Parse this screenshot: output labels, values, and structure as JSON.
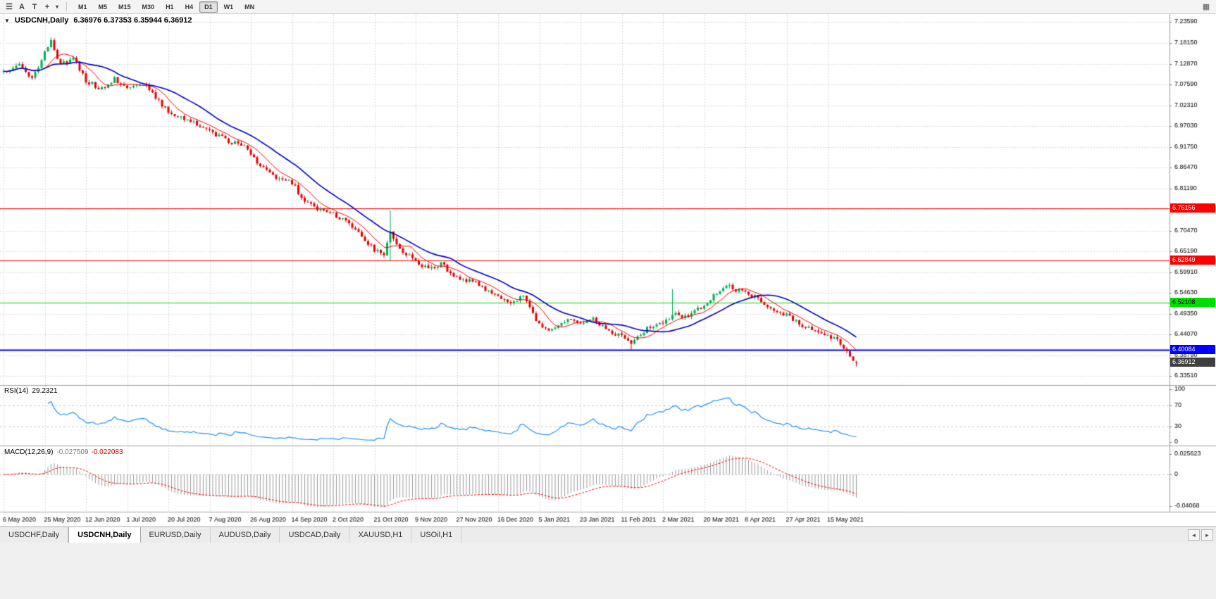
{
  "toolbar": {
    "left_icons": [
      {
        "name": "toolbars-menu-icon",
        "glyph": "☰"
      },
      {
        "name": "cursor-tool-icon",
        "glyph": "A"
      },
      {
        "name": "text-tool-icon",
        "glyph": "T"
      },
      {
        "name": "crosshair-tool-icon",
        "glyph": "+"
      },
      {
        "name": "tool-dropdown-icon",
        "glyph": "▾"
      }
    ],
    "timeframes": [
      {
        "label": "M1",
        "active": false
      },
      {
        "label": "M5",
        "active": false
      },
      {
        "label": "M15",
        "active": false
      },
      {
        "label": "M30",
        "active": false
      },
      {
        "label": "H1",
        "active": false
      },
      {
        "label": "H4",
        "active": false
      },
      {
        "label": "D1",
        "active": true
      },
      {
        "label": "W1",
        "active": false
      },
      {
        "label": "MN",
        "active": false
      }
    ],
    "right_icon_glyph": "▦"
  },
  "chart_header": {
    "dropdown_glyph": "▼",
    "title": "USDCNH,Daily",
    "ohlc": "6.36976 6.37353 6.35944 6.36912"
  },
  "indicators": {
    "rsi_label": "RSI(14)",
    "rsi_value": "29.2321",
    "macd_label": "MACD(12,26,9)",
    "macd_value_main": "-0.027509",
    "macd_value_signal": "-0.022083"
  },
  "tabbar": {
    "tabs": [
      {
        "label": "USDCHF,Daily",
        "active": false
      },
      {
        "label": "USDCNH,Daily",
        "active": true
      },
      {
        "label": "EURUSD,Daily",
        "active": false
      },
      {
        "label": "AUDUSD,Daily",
        "active": false
      },
      {
        "label": "USDCAD,Daily",
        "active": false
      },
      {
        "label": "XAUUSD,H1",
        "active": false
      },
      {
        "label": "USOil,H1",
        "active": false
      }
    ],
    "scroll_left_glyph": "◄",
    "scroll_right_glyph": "►"
  },
  "chart_data": {
    "type": "candlestick",
    "symbol": "USDCNH",
    "timeframe": "Daily",
    "up_color": "#00b050",
    "down_color": "#e60000",
    "price_axis_labels": [
      "7.23590",
      "7.18150",
      "7.12870",
      "7.07590",
      "7.02310",
      "6.97030",
      "6.91750",
      "6.86470",
      "6.81190",
      "6.75910",
      "6.70470",
      "6.65190",
      "6.59910",
      "6.54630",
      "6.49350",
      "6.44070",
      "6.38790",
      "6.33510"
    ],
    "date_labels": [
      "6 May 2020",
      "25 May 2020",
      "12 Jun 2020",
      "1 Jul 2020",
      "20 Jul 2020",
      "7 Aug 2020",
      "26 Aug 2020",
      "14 Sep 2020",
      "2 Oct 2020",
      "21 Oct 2020",
      "9 Nov 2020",
      "27 Nov 2020",
      "16 Dec 2020",
      "5 Jan 2021",
      "23 Jan 2021",
      "11 Feb 2021",
      "2 Mar 2021",
      "20 Mar 2021",
      "8 Apr 2021",
      "27 Apr 2021",
      "15 May 2021"
    ],
    "num_candles": 270,
    "candles_per_date_tick": 13,
    "last_candle": {
      "o": 6.36976,
      "h": 6.37353,
      "l": 6.35944,
      "c": 6.36912
    },
    "price_anchors": [
      [
        0,
        7.105
      ],
      [
        5,
        7.125
      ],
      [
        9,
        7.09
      ],
      [
        13,
        7.155
      ],
      [
        15,
        7.185
      ],
      [
        18,
        7.125
      ],
      [
        22,
        7.145
      ],
      [
        26,
        7.085
      ],
      [
        31,
        7.065
      ],
      [
        35,
        7.09
      ],
      [
        39,
        7.07
      ],
      [
        45,
        7.075
      ],
      [
        52,
        7.005
      ],
      [
        58,
        6.99
      ],
      [
        65,
        6.955
      ],
      [
        72,
        6.93
      ],
      [
        77,
        6.915
      ],
      [
        80,
        6.875
      ],
      [
        85,
        6.845
      ],
      [
        91,
        6.825
      ],
      [
        95,
        6.78
      ],
      [
        98,
        6.765
      ],
      [
        104,
        6.745
      ],
      [
        108,
        6.73
      ],
      [
        112,
        6.7
      ],
      [
        117,
        6.655
      ],
      [
        120,
        6.645
      ],
      [
        122,
        6.705
      ],
      [
        124,
        6.665
      ],
      [
        130,
        6.625
      ],
      [
        134,
        6.605
      ],
      [
        138,
        6.62
      ],
      [
        143,
        6.585
      ],
      [
        148,
        6.575
      ],
      [
        152,
        6.555
      ],
      [
        156,
        6.54
      ],
      [
        160,
        6.525
      ],
      [
        164,
        6.535
      ],
      [
        169,
        6.465
      ],
      [
        172,
        6.45
      ],
      [
        176,
        6.475
      ],
      [
        180,
        6.48
      ],
      [
        182,
        6.47
      ],
      [
        186,
        6.48
      ],
      [
        190,
        6.455
      ],
      [
        195,
        6.435
      ],
      [
        198,
        6.415
      ],
      [
        202,
        6.45
      ],
      [
        206,
        6.465
      ],
      [
        209,
        6.475
      ],
      [
        212,
        6.49
      ],
      [
        215,
        6.485
      ],
      [
        218,
        6.5
      ],
      [
        221,
        6.515
      ],
      [
        225,
        6.545
      ],
      [
        228,
        6.565
      ],
      [
        231,
        6.555
      ],
      [
        234,
        6.55
      ],
      [
        238,
        6.53
      ],
      [
        242,
        6.505
      ],
      [
        245,
        6.495
      ],
      [
        248,
        6.485
      ],
      [
        251,
        6.47
      ],
      [
        254,
        6.455
      ],
      [
        257,
        6.445
      ],
      [
        260,
        6.435
      ],
      [
        263,
        6.425
      ],
      [
        265,
        6.405
      ],
      [
        267,
        6.385
      ],
      [
        269,
        6.3691
      ]
    ],
    "wick_events": [
      {
        "i": 15,
        "h": 7.1965
      },
      {
        "i": 122,
        "h": 6.756,
        "l": 6.626
      },
      {
        "i": 198,
        "l": 6.401
      },
      {
        "i": 211,
        "h": 6.556
      }
    ],
    "moving_averages": [
      {
        "name": "fast-ma",
        "period": 8,
        "color": "#ff0000",
        "width": 1
      },
      {
        "name": "slow-ma",
        "period": 21,
        "color": "#0000c8",
        "width": 1.6
      }
    ],
    "hlines": [
      {
        "price": 6.76156,
        "label": "6.76156",
        "color": "#ff0000",
        "width": 1,
        "text_color": "#ffffff"
      },
      {
        "price": 6.62849,
        "label": "6.62849",
        "color": "#ff0000",
        "width": 1,
        "text_color": "#ffffff"
      },
      {
        "price": 6.52108,
        "label": "6.52108",
        "color": "#00dd00",
        "width": 1,
        "text_color": "#000000"
      },
      {
        "price": 6.40084,
        "label": "6.40084",
        "color": "#0000ff",
        "width": 2,
        "text_color": "#ffffff"
      }
    ],
    "current_price": {
      "price": 6.36912,
      "label": "6.36912",
      "bg": "#3f3f3f",
      "text_color": "#ffffff"
    },
    "rsi": {
      "period": 14,
      "color": "#1e90ff",
      "axis_labels": [
        "100",
        "70",
        "30",
        "0"
      ],
      "axis_values": [
        100,
        70,
        30,
        0
      ],
      "dashed_levels": [
        70,
        30
      ]
    },
    "macd": {
      "fast": 12,
      "slow": 26,
      "signal": 9,
      "hist_color": "#9c9c9c",
      "signal_color": "#ff0000",
      "axis_labels": [
        "0.025623",
        "0",
        "-0.04068"
      ],
      "axis_values": [
        0.025623,
        0,
        -0.04068
      ]
    }
  }
}
